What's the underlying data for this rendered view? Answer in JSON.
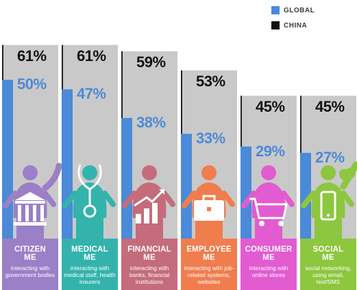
{
  "legend": [
    {
      "label": "GLOBAL",
      "color": "#4a8ad8"
    },
    {
      "label": "CHINA",
      "color": "#111111"
    }
  ],
  "chart_data": {
    "type": "bar",
    "categories": [
      "CITIZEN ME",
      "MEDICAL ME",
      "FINANCIAL ME",
      "EMPLOYEE ME",
      "CONSUMER ME",
      "SOCIAL ME"
    ],
    "series": [
      {
        "name": "GLOBAL",
        "values": [
          50,
          47,
          38,
          33,
          29,
          27
        ],
        "labels": [
          "50%",
          "47%",
          "38%",
          "33%",
          "29%",
          "27%"
        ]
      },
      {
        "name": "CHINA",
        "values": [
          61,
          61,
          59,
          53,
          45,
          45
        ],
        "labels": [
          "61%",
          "61%",
          "59%",
          "53%",
          "45%",
          "45%"
        ]
      }
    ],
    "ylim": [
      0,
      100
    ],
    "legend_position": "top-right"
  },
  "panels": [
    {
      "title1": "CITIZEN",
      "title2": "ME",
      "desc": "interacting with government bodies",
      "color": "#9b7fc7",
      "icon": "government-building-icon"
    },
    {
      "title1": "MEDICAL",
      "title2": "ME",
      "desc": "interacting with medical staff, health insurers",
      "color": "#33b3ac",
      "icon": "stethoscope-icon"
    },
    {
      "title1": "FINANCIAL",
      "title2": "ME",
      "desc": "interacting with banks, financial institutions",
      "color": "#c46c7b",
      "icon": "growth-chart-icon"
    },
    {
      "title1": "EMPLOYEE",
      "title2": "ME",
      "desc": "interacting with job-related systems, websites",
      "color": "#f07d4d",
      "icon": "briefcase-icon"
    },
    {
      "title1": "CONSUMER",
      "title2": "ME",
      "desc": "interacting with online stores",
      "color": "#e35bd0",
      "icon": "shopping-cart-icon"
    },
    {
      "title1": "SOCIAL",
      "title2": "ME",
      "desc": "social networking, using email, text/SMS",
      "color": "#8dc63f",
      "icon": "smartphone-icon"
    }
  ]
}
